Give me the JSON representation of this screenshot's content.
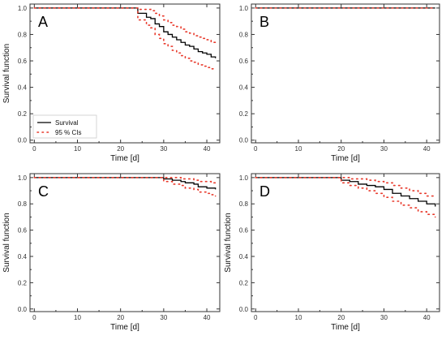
{
  "chart_data": [
    {
      "type": "line",
      "panel_label": "A",
      "xlabel": "Time [d]",
      "ylabel": "Survival function",
      "xlim": [
        -1,
        43
      ],
      "ylim": [
        -0.02,
        1.03
      ],
      "xticks": [
        "0",
        "10",
        "20",
        "30",
        "40"
      ],
      "yticks": [
        "0.0",
        "0.2",
        "0.4",
        "0.6",
        "0.8",
        "1.0"
      ],
      "legend": {
        "position": "bottom-left",
        "entries": [
          "Survival",
          "95 % CIs"
        ]
      },
      "series": [
        {
          "name": "Survival",
          "style": "solid",
          "color": "#000000",
          "x": [
            0,
            23,
            24,
            26,
            27,
            28,
            29,
            30,
            31,
            32,
            33,
            34,
            35,
            36,
            37,
            38,
            39,
            40,
            41,
            42
          ],
          "y": [
            1.0,
            1.0,
            0.96,
            0.93,
            0.92,
            0.88,
            0.86,
            0.82,
            0.8,
            0.78,
            0.76,
            0.74,
            0.72,
            0.71,
            0.69,
            0.67,
            0.66,
            0.65,
            0.63,
            0.62
          ]
        },
        {
          "name": "95 % CIs",
          "style": "dotted",
          "color": "#e8392b",
          "x": [
            0,
            23,
            24,
            26,
            27,
            28,
            29,
            30,
            31,
            32,
            33,
            34,
            35,
            36,
            37,
            38,
            39,
            40,
            41,
            42
          ],
          "y": [
            1.0,
            1.0,
            0.99,
            0.99,
            0.98,
            0.96,
            0.94,
            0.91,
            0.89,
            0.87,
            0.86,
            0.84,
            0.82,
            0.81,
            0.79,
            0.78,
            0.77,
            0.76,
            0.74,
            0.73
          ]
        },
        {
          "name": "",
          "style": "dotted",
          "color": "#e8392b",
          "x": [
            0,
            23,
            24,
            26,
            27,
            28,
            29,
            30,
            31,
            32,
            33,
            34,
            35,
            36,
            37,
            38,
            39,
            40,
            41,
            42
          ],
          "y": [
            1.0,
            1.0,
            0.91,
            0.87,
            0.85,
            0.8,
            0.77,
            0.73,
            0.71,
            0.68,
            0.66,
            0.64,
            0.62,
            0.6,
            0.59,
            0.57,
            0.56,
            0.55,
            0.54,
            0.53
          ]
        }
      ]
    },
    {
      "type": "line",
      "panel_label": "B",
      "xlabel": "Time [d]",
      "ylabel": "",
      "xlim": [
        -1,
        43
      ],
      "ylim": [
        -0.02,
        1.03
      ],
      "xticks": [
        "0",
        "10",
        "20",
        "30",
        "40"
      ],
      "yticks": [
        "0.0",
        "0.2",
        "0.4",
        "0.6",
        "0.8",
        "1.0"
      ],
      "series": [
        {
          "name": "Survival",
          "style": "solid",
          "color": "#000000",
          "x": [
            0,
            42
          ],
          "y": [
            1.0,
            1.0
          ]
        },
        {
          "name": "95 % CIs",
          "style": "dotted",
          "color": "#e8392b",
          "x": [
            0,
            42
          ],
          "y": [
            1.0,
            1.0
          ]
        }
      ]
    },
    {
      "type": "line",
      "panel_label": "C",
      "xlabel": "Time [d]",
      "ylabel": "Survival function",
      "xlim": [
        -1,
        43
      ],
      "ylim": [
        -0.02,
        1.03
      ],
      "xticks": [
        "0",
        "10",
        "20",
        "30",
        "40"
      ],
      "yticks": [
        "0.0",
        "0.2",
        "0.4",
        "0.6",
        "0.8",
        "1.0"
      ],
      "series": [
        {
          "name": "Survival",
          "style": "solid",
          "color": "#000000",
          "x": [
            0,
            28,
            30,
            32,
            34,
            35,
            37,
            38,
            40,
            41,
            42
          ],
          "y": [
            1.0,
            1.0,
            0.99,
            0.98,
            0.97,
            0.96,
            0.95,
            0.93,
            0.92,
            0.92,
            0.91
          ]
        },
        {
          "name": "95 % CIs",
          "style": "dotted",
          "color": "#e8392b",
          "x": [
            0,
            28,
            30,
            32,
            34,
            35,
            37,
            38,
            40,
            41,
            42
          ],
          "y": [
            1.0,
            1.0,
            1.0,
            1.0,
            0.99,
            0.99,
            0.98,
            0.97,
            0.97,
            0.96,
            0.96
          ]
        },
        {
          "name": "",
          "style": "dotted",
          "color": "#e8392b",
          "x": [
            0,
            28,
            30,
            32,
            34,
            35,
            37,
            38,
            40,
            41,
            42
          ],
          "y": [
            1.0,
            1.0,
            0.97,
            0.95,
            0.94,
            0.92,
            0.91,
            0.89,
            0.88,
            0.87,
            0.86
          ]
        }
      ]
    },
    {
      "type": "line",
      "panel_label": "D",
      "xlabel": "Time [d]",
      "ylabel": "Survival function",
      "xlim": [
        -1,
        43
      ],
      "ylim": [
        -0.02,
        1.03
      ],
      "xticks": [
        "0",
        "10",
        "20",
        "30",
        "40"
      ],
      "yticks": [
        "0.0",
        "0.2",
        "0.4",
        "0.6",
        "0.8",
        "1.0"
      ],
      "series": [
        {
          "name": "Survival",
          "style": "solid",
          "color": "#000000",
          "x": [
            0,
            18,
            20,
            22,
            24,
            26,
            28,
            30,
            32,
            34,
            36,
            38,
            40,
            42
          ],
          "y": [
            1.0,
            1.0,
            0.98,
            0.97,
            0.95,
            0.94,
            0.93,
            0.91,
            0.88,
            0.86,
            0.84,
            0.82,
            0.8,
            0.78
          ]
        },
        {
          "name": "95 % CIs",
          "style": "dotted",
          "color": "#e8392b",
          "x": [
            0,
            18,
            20,
            22,
            24,
            26,
            28,
            30,
            32,
            34,
            36,
            38,
            40,
            42
          ],
          "y": [
            1.0,
            1.0,
            1.0,
            0.99,
            0.99,
            0.98,
            0.97,
            0.96,
            0.94,
            0.92,
            0.9,
            0.88,
            0.86,
            0.85
          ]
        },
        {
          "name": "",
          "style": "dotted",
          "color": "#e8392b",
          "x": [
            0,
            18,
            20,
            22,
            24,
            26,
            28,
            30,
            32,
            34,
            36,
            38,
            40,
            42
          ],
          "y": [
            1.0,
            1.0,
            0.96,
            0.94,
            0.92,
            0.9,
            0.88,
            0.85,
            0.82,
            0.79,
            0.77,
            0.74,
            0.72,
            0.7
          ]
        }
      ]
    }
  ]
}
